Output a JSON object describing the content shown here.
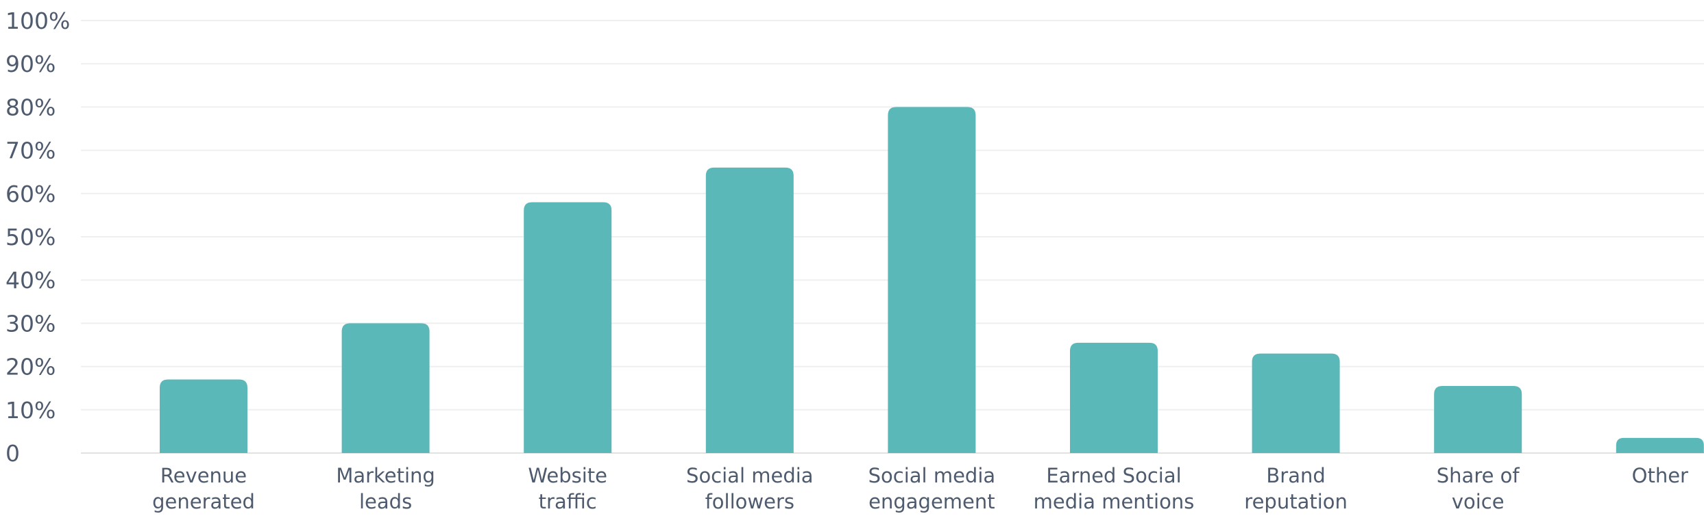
{
  "chart_data": {
    "type": "bar",
    "title": "",
    "xlabel": "",
    "ylabel": "",
    "ylim": [
      0,
      100
    ],
    "y_ticks": [
      "0",
      "10%",
      "20%",
      "30%",
      "40%",
      "50%",
      "60%",
      "70%",
      "80%",
      "90%",
      "100%"
    ],
    "y_tick_values": [
      0,
      10,
      20,
      30,
      40,
      50,
      60,
      70,
      80,
      90,
      100
    ],
    "categories": [
      [
        "Revenue",
        "generated"
      ],
      [
        "Marketing",
        "leads"
      ],
      [
        "Website",
        "traffic"
      ],
      [
        "Social media",
        "followers"
      ],
      [
        "Social media",
        "engagement"
      ],
      [
        "Earned Social",
        "media mentions"
      ],
      [
        "Brand",
        "reputation"
      ],
      [
        "Share of",
        "voice"
      ],
      [
        "Other"
      ]
    ],
    "values": [
      17,
      30,
      58,
      66,
      80,
      25.5,
      23,
      15.5,
      3.5
    ],
    "bar_color": "#5bb8b9",
    "grid": true,
    "legend": "none"
  }
}
